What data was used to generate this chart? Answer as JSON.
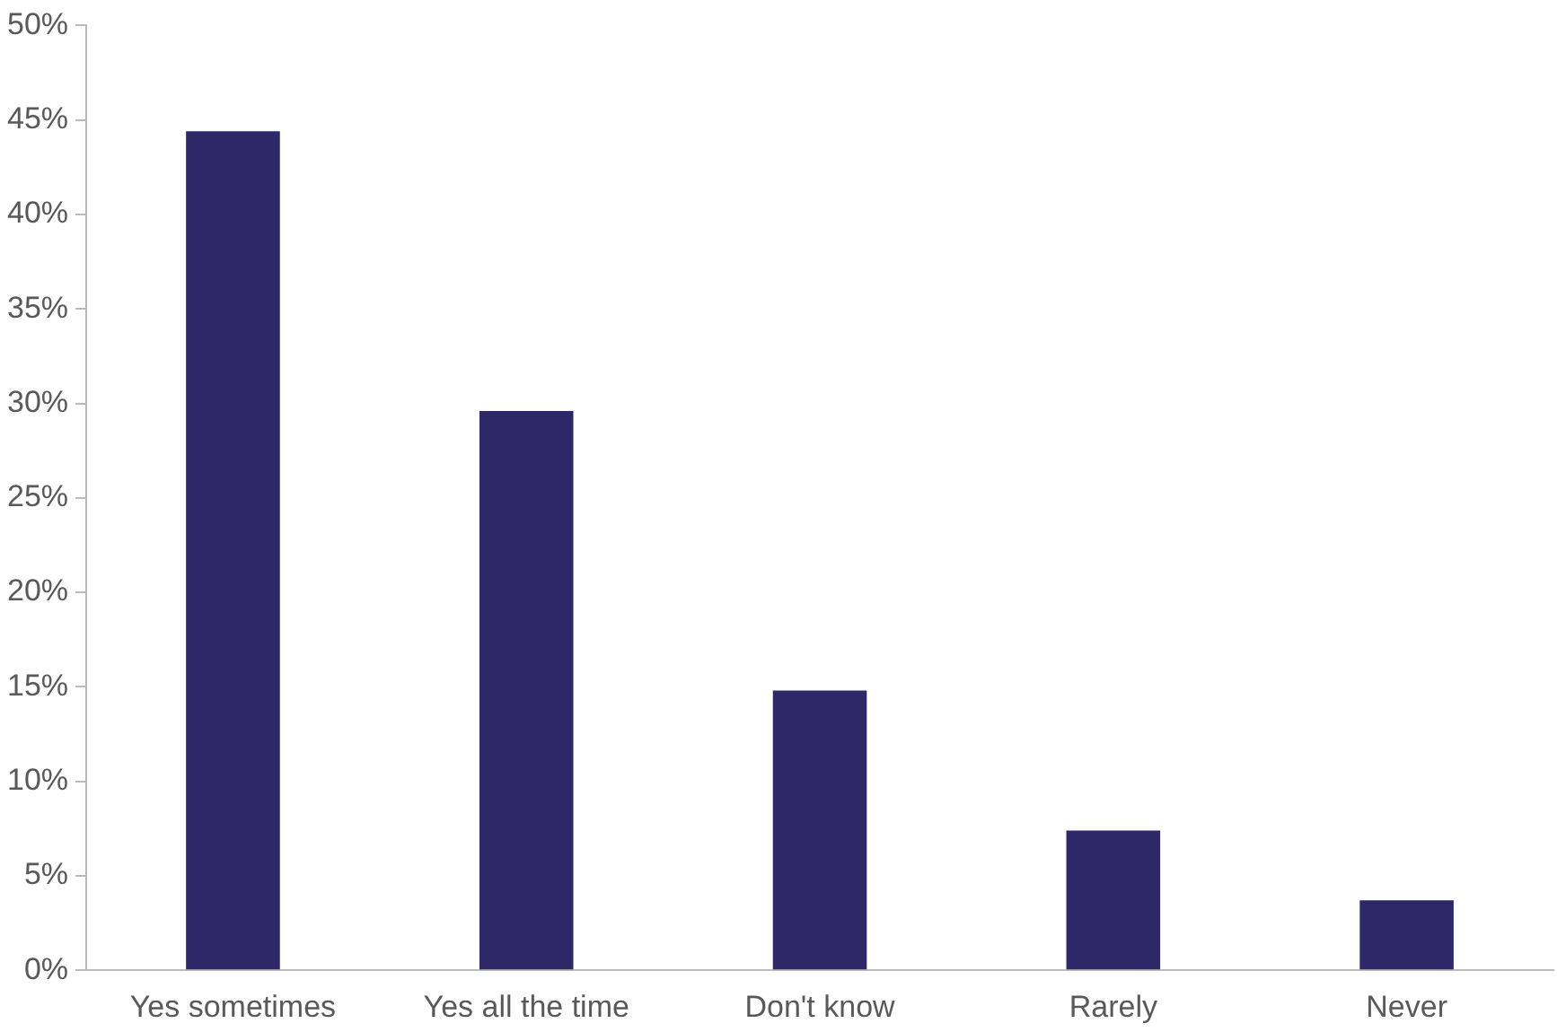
{
  "chart_data": {
    "type": "bar",
    "categories": [
      "Yes sometimes",
      "Yes all the time",
      "Don't know",
      "Rarely",
      "Never"
    ],
    "values": [
      44.4,
      29.6,
      14.8,
      7.4,
      3.7
    ],
    "color": "#2e2868",
    "ylim": [
      0,
      50
    ],
    "yticks": [
      {
        "value": 0,
        "label": "0%"
      },
      {
        "value": 5,
        "label": "5%"
      },
      {
        "value": 10,
        "label": "10%"
      },
      {
        "value": 15,
        "label": "15%"
      },
      {
        "value": 20,
        "label": "20%"
      },
      {
        "value": 25,
        "label": "25%"
      },
      {
        "value": 30,
        "label": "30%"
      },
      {
        "value": 35,
        "label": "35%"
      },
      {
        "value": 40,
        "label": "40%"
      },
      {
        "value": 45,
        "label": "45%"
      },
      {
        "value": 50,
        "label": "50%"
      }
    ],
    "grid": false,
    "legend": false
  }
}
